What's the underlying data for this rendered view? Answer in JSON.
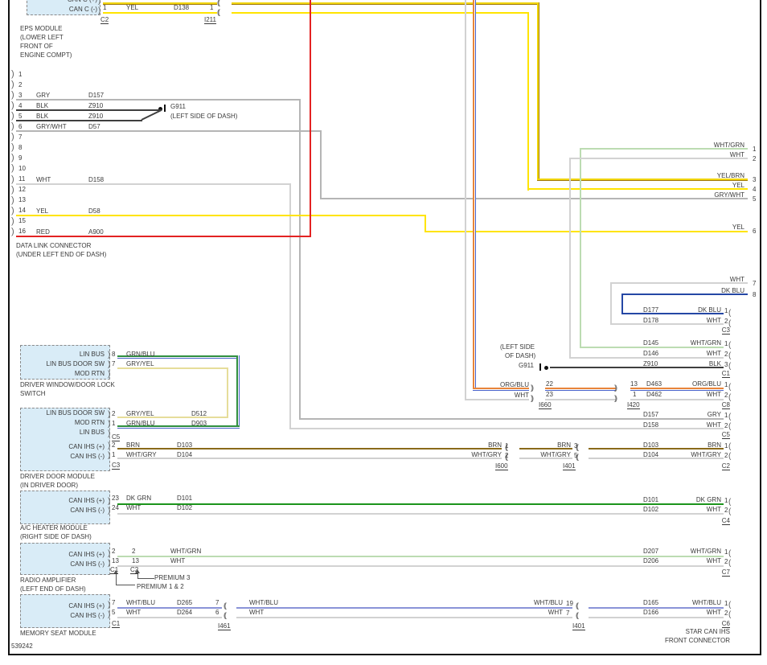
{
  "sheet": {
    "number": "539242"
  },
  "palette": {
    "yellow": "#ffe400",
    "yellow_brown_stripe": "#a07a10",
    "red": "#e32222",
    "black_wire": "#3f3f3f",
    "gray": "#b5b5b5",
    "white_wire": "#d2d2d2",
    "pale_green": "#bcdcb2",
    "dark_green": "#1c941c",
    "dark_blue": "#2547a5",
    "brown": "#8a6a1a",
    "white_gray": "#cfcfcf",
    "white_blue": "#8a93d8",
    "gray_yellow": "#e6dd9a",
    "orange": "#e8853a",
    "blue_stripe": "#4a62c8",
    "module_fill": "#d9ecf7"
  },
  "eps": {
    "caption": [
      "EPS MODULE",
      "(LOWER LEFT",
      "FRONT OF",
      "ENGINE COMPT)"
    ],
    "pin_plus_label": "CAN C (+)",
    "pin_minus_label": "CAN C (-)",
    "pin_minus": "1",
    "wire_color": "YEL",
    "circuit": "D138",
    "inline_pin": "1",
    "inline_name": "I211",
    "connector": "C2"
  },
  "dlc": {
    "caption": [
      "DATA LINK CONNECTOR",
      "(UNDER LEFT END OF DASH)"
    ],
    "pin_numbers": [
      "1",
      "2",
      "3",
      "4",
      "5",
      "6",
      "7",
      "8",
      "9",
      "10",
      "11",
      "12",
      "13",
      "14",
      "15",
      "16"
    ],
    "rows": {
      "p3": {
        "color": "GRY",
        "circuit": "D157"
      },
      "p4": {
        "color": "BLK",
        "circuit": "Z910"
      },
      "p5": {
        "color": "BLK",
        "circuit": "Z910"
      },
      "p6": {
        "color": "GRY/WHT",
        "circuit": "D57"
      },
      "p11": {
        "color": "WHT",
        "circuit": "D158"
      },
      "p14": {
        "color": "YEL",
        "circuit": "D58"
      },
      "p16": {
        "color": "RED",
        "circuit": "A900"
      }
    },
    "ground": {
      "name": "G911",
      "location": "(LEFT SIDE OF DASH)"
    }
  },
  "edge_pins": {
    "rows": [
      {
        "color": "WHT/GRN",
        "pin": "1"
      },
      {
        "color": "WHT",
        "pin": "2"
      },
      {
        "color": "YEL/BRN",
        "pin": "3"
      },
      {
        "color": "YEL",
        "pin": "4"
      },
      {
        "color": "GRY/WHT",
        "pin": "5"
      },
      {
        "color": "YEL",
        "pin": "6"
      },
      {
        "color": "WHT",
        "pin": "7"
      },
      {
        "color": "DK BLU",
        "pin": "8"
      }
    ]
  },
  "conn_c3": {
    "rows": [
      {
        "circuit": "D177",
        "color": "DK BLU",
        "pin": "1"
      },
      {
        "circuit": "D178",
        "color": "WHT",
        "pin": "2"
      }
    ],
    "label": "C3"
  },
  "conn_c1": {
    "rows": [
      {
        "circuit": "D145",
        "color": "WHT/GRN",
        "pin": "1"
      },
      {
        "circuit": "D146",
        "color": "WHT",
        "pin": "2"
      },
      {
        "circuit": "Z910",
        "color": "BLK",
        "pin": "3"
      }
    ],
    "label": "C1",
    "ground": {
      "name": "G911",
      "location": [
        "(LEFT SIDE",
        "OF DASH)"
      ]
    }
  },
  "inline_i660": {
    "rows": [
      {
        "color": "ORG/BLU",
        "pin": "22"
      },
      {
        "color": "WHT",
        "pin": "23"
      }
    ],
    "label": "I660"
  },
  "inline_i420": {
    "rows": [
      {
        "pin": "13",
        "circuit": "D463"
      },
      {
        "pin": "1",
        "circuit": "D462"
      }
    ],
    "label": "I420"
  },
  "conn_c8": {
    "rows": [
      {
        "color": "ORG/BLU",
        "pin": "1"
      },
      {
        "color": "WHT",
        "pin": "2"
      }
    ],
    "label": "C8"
  },
  "conn_c5": {
    "rows": [
      {
        "circuit": "D157",
        "color": "GRY",
        "pin": "1"
      },
      {
        "circuit": "D158",
        "color": "WHT",
        "pin": "2"
      }
    ],
    "label": "C5"
  },
  "switch_mod": {
    "caption": [
      "DRIVER WINDOW/DOOR LOCK",
      "SWITCH"
    ],
    "pin_labels": [
      "LIN BUS",
      "LIN BUS DOOR SW",
      "MOD RTN"
    ],
    "pin_nums": [
      "8",
      "7"
    ],
    "colors": [
      "GRN/BLU",
      "GRY/YEL"
    ]
  },
  "door": {
    "caption": [
      "DRIVER DOOR MODULE",
      "(IN DRIVER DOOR)"
    ],
    "lin": {
      "labels": [
        "LIN BUS DOOR SW",
        "MOD RTN",
        "LIN BUS"
      ],
      "nums": [
        "2",
        "1"
      ],
      "colors": [
        "GRY/YEL",
        "GRN/BLU"
      ],
      "circuits": [
        "D512",
        "D903"
      ],
      "connector": "C5"
    },
    "can": {
      "labels": [
        "CAN IHS (+)",
        "CAN IHS (-)"
      ],
      "nums": [
        "2",
        "1"
      ],
      "colors": [
        "BRN",
        "WHT/GRY"
      ],
      "circuits": [
        "D103",
        "D104"
      ],
      "connector": "C3"
    }
  },
  "inline_i600": {
    "rows": [
      {
        "color": "BRN",
        "pin": "1"
      },
      {
        "color": "WHT/GRY",
        "pin": "2"
      }
    ],
    "label": "I600"
  },
  "inline_i401_door": {
    "rows": [
      {
        "color": "BRN",
        "pin": "3"
      },
      {
        "color": "WHT/GRY",
        "pin": "5"
      }
    ],
    "label": "I401"
  },
  "conn_c2": {
    "rows": [
      {
        "circuit": "D103",
        "color": "BRN",
        "pin": "1"
      },
      {
        "circuit": "D104",
        "color": "WHT/GRY",
        "pin": "2"
      }
    ],
    "label": "C2"
  },
  "ac": {
    "caption": [
      "A/C HEATER MODULE",
      "(RIGHT SIDE OF DASH)"
    ],
    "labels": [
      "CAN IHS (+)",
      "CAN IHS (-)"
    ],
    "nums": [
      "23",
      "24"
    ],
    "colors": [
      "DK GRN",
      "WHT"
    ],
    "circuits": [
      "D101",
      "D102"
    ]
  },
  "conn_c4": {
    "rows": [
      {
        "circuit": "D101",
        "color": "DK GRN",
        "pin": "1"
      },
      {
        "circuit": "D102",
        "color": "WHT",
        "pin": "2"
      }
    ],
    "label": "C4"
  },
  "radio": {
    "caption": [
      "RADIO AMPLIFIER",
      "(LEFT END OF DASH)"
    ],
    "labels": [
      "CAN IHS (+)",
      "CAN IHS (-)"
    ],
    "nums_c1": [
      "2",
      "13"
    ],
    "nums_c2": [
      "2",
      "13"
    ],
    "colors": [
      "WHT/GRN",
      "WHT"
    ],
    "connector1": "C1",
    "connector2": "C2",
    "note1": "PREMIUM 1 & 2",
    "note2": "PREMIUM 3"
  },
  "conn_c7": {
    "rows": [
      {
        "circuit": "D207",
        "color": "WHT/GRN",
        "pin": "1"
      },
      {
        "circuit": "D206",
        "color": "WHT",
        "pin": "2"
      }
    ],
    "label": "C7"
  },
  "seat": {
    "caption": [
      "MEMORY SEAT MODULE"
    ],
    "labels": [
      "CAN IHS (+)",
      "CAN IHS (-)"
    ],
    "nums": [
      "7",
      "5"
    ],
    "colors": [
      "WHT/BLU",
      "WHT"
    ],
    "circuits": [
      "D265",
      "D264"
    ],
    "connector": "C1"
  },
  "inline_i461": {
    "pins": [
      "7",
      "6"
    ],
    "label": "I461",
    "mid_colors": [
      "WHT/BLU",
      "WHT"
    ]
  },
  "inline_i401_seat": {
    "rows": [
      {
        "color": "WHT/BLU",
        "pin": "19"
      },
      {
        "color": "WHT",
        "pin": "7"
      }
    ],
    "label": "I401"
  },
  "conn_c6": {
    "rows": [
      {
        "circuit": "D165",
        "color": "WHT/BLU",
        "pin": "1"
      },
      {
        "circuit": "D166",
        "color": "WHT",
        "pin": "2"
      }
    ],
    "label": "C6"
  },
  "star": {
    "caption": [
      "STAR CAN IHS",
      "FRONT CONNECTOR"
    ]
  }
}
